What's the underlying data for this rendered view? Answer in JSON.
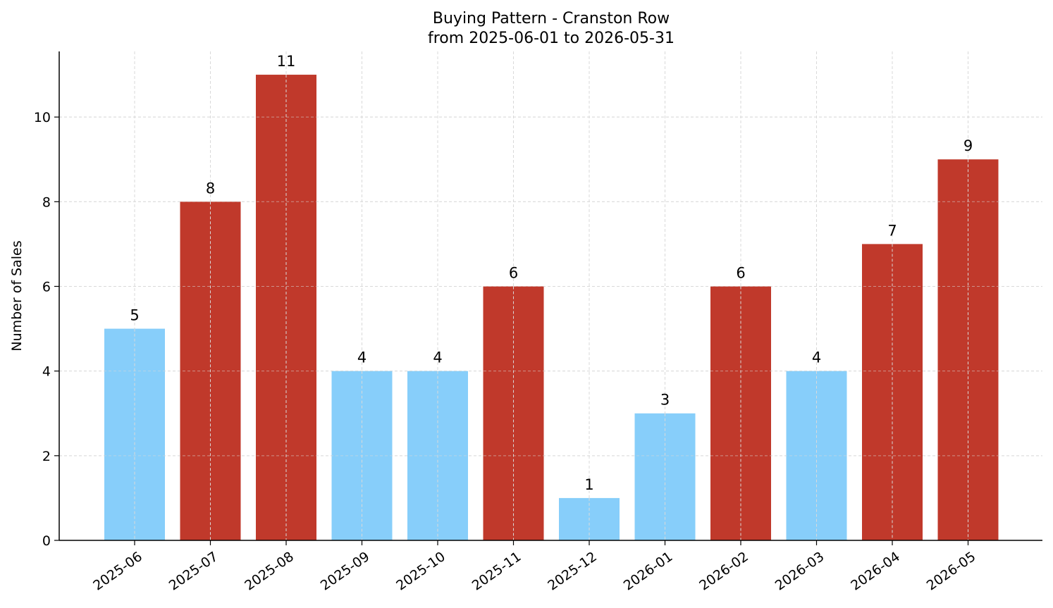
{
  "chart_data": {
    "type": "bar",
    "title": "Buying Pattern - Cranston Row",
    "subtitle": "from 2025-06-01 to 2026-05-31",
    "xlabel": "",
    "ylabel": "Number of Sales",
    "categories": [
      "2025-06",
      "2025-07",
      "2025-08",
      "2025-09",
      "2025-10",
      "2025-11",
      "2025-12",
      "2026-01",
      "2026-02",
      "2026-03",
      "2026-04",
      "2026-05"
    ],
    "values": [
      5,
      8,
      11,
      4,
      4,
      6,
      1,
      3,
      6,
      4,
      7,
      9
    ],
    "ylim": [
      0,
      11.55
    ],
    "yticks": [
      0,
      2,
      4,
      6,
      8,
      10
    ],
    "grid": true,
    "colors": {
      "low": "#87CEFA",
      "high": "#C0392B"
    },
    "bar_colors": [
      "low",
      "high",
      "high",
      "low",
      "low",
      "high",
      "low",
      "low",
      "high",
      "low",
      "high",
      "high"
    ]
  }
}
